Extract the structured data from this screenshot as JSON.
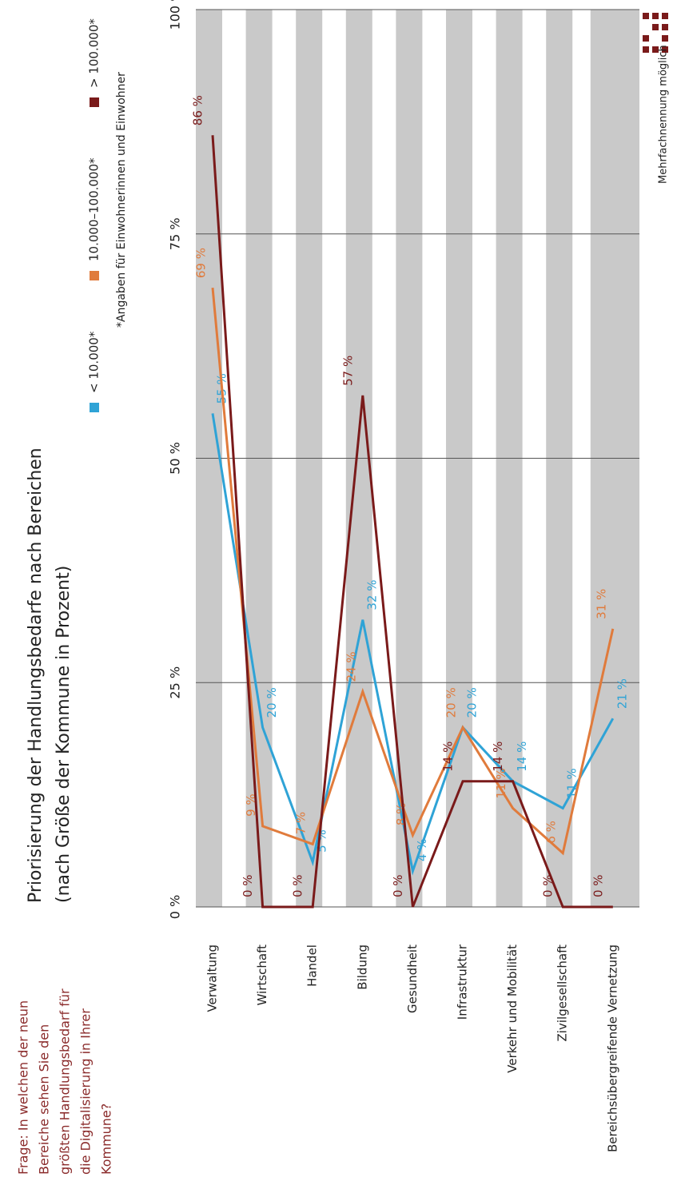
{
  "question": [
    "Frage: In welchen der neun",
    "Bereiche sehen Sie den",
    "größten Handlungsbedarf für",
    "die Digitalisierung in Ihrer",
    "Kommune?"
  ],
  "chart_data": {
    "type": "line",
    "title": "Priorisierung der Handlungsbedarfe nach Bereichen",
    "subtitle": "(nach Größe der Kommune in Prozent)",
    "footnote": "*Angaben für Einwohnerinnen und Einwohner",
    "note": "Mehrfachnennung möglich",
    "categories": [
      "Verwaltung",
      "Wirtschaft",
      "Handel",
      "Bildung",
      "Gesundheit",
      "Infrastruktur",
      "Verkehr und Mobilität",
      "Zivilgesellschaft",
      "Bereichsübergreifende Vernetzung"
    ],
    "series": [
      {
        "name": "< 10.000*",
        "color": "#2fa3d6",
        "values": [
          55,
          20,
          5,
          32,
          4,
          20,
          14,
          11,
          21
        ],
        "value_labels": [
          "55 %",
          "20 %",
          "5 %",
          "32 %",
          "4 %",
          "20 %",
          "14 %",
          "11 %",
          "21 %"
        ]
      },
      {
        "name": "10.000–100.000*",
        "color": "#e07b3c",
        "values": [
          69,
          9,
          7,
          24,
          8,
          20,
          11,
          6,
          31
        ],
        "value_labels": [
          "69 %",
          "9 %",
          "7 %",
          "24 %",
          "8 %",
          "20 %",
          "11 %",
          "6 %",
          "31 %"
        ]
      },
      {
        "name": "> 100.000*",
        "color": "#7a1a1a",
        "values": [
          86,
          0,
          0,
          57,
          0,
          14,
          14,
          0,
          0
        ],
        "value_labels": [
          "86 %",
          "0 %",
          "0 %",
          "57 %",
          "0 %",
          "14 %",
          "14 %",
          "0 %",
          "0 %"
        ]
      }
    ],
    "ylim": [
      0,
      100
    ],
    "yticks": [
      {
        "value": 0,
        "label": "0 %"
      },
      {
        "value": 25,
        "label": "25 %"
      },
      {
        "value": 50,
        "label": "50 %"
      },
      {
        "value": 75,
        "label": "75 %"
      },
      {
        "value": 100,
        "label": "100 %"
      }
    ],
    "grid": true
  }
}
